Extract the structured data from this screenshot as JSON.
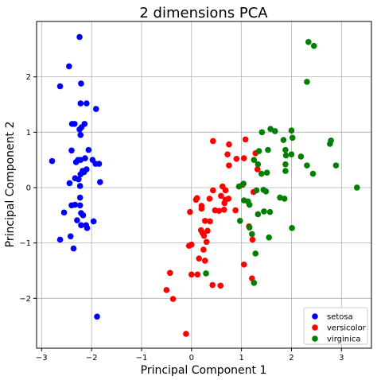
{
  "chart_data": {
    "type": "scatter",
    "title": "2 dimensions PCA",
    "xlabel": "Principal Component 1",
    "ylabel": "Principal Component 2",
    "xlim": [
      -3.1,
      3.6
    ],
    "ylim": [
      -2.9,
      3.0
    ],
    "xticks": [
      -3,
      -2,
      -1,
      0,
      1,
      2,
      3
    ],
    "yticks": [
      -2,
      -1,
      0,
      1,
      2
    ],
    "xtick_labels": [
      "−3",
      "−2",
      "−1",
      "0",
      "1",
      "2",
      "3"
    ],
    "ytick_labels": [
      "−2",
      "−1",
      "0",
      "1",
      "2"
    ],
    "grid": true,
    "legend_position": "bottom-right",
    "series": [
      {
        "name": "setosa",
        "color": "#0000ff",
        "points": [
          [
            -2.24,
            2.72
          ],
          [
            -2.45,
            2.19
          ],
          [
            -2.63,
            1.83
          ],
          [
            -2.21,
            1.88
          ],
          [
            -2.22,
            1.52
          ],
          [
            -2.1,
            1.52
          ],
          [
            -1.91,
            1.42
          ],
          [
            -2.39,
            1.15
          ],
          [
            -2.34,
            1.15
          ],
          [
            -2.14,
            1.15
          ],
          [
            -2.2,
            1.09
          ],
          [
            -2.24,
            1.05
          ],
          [
            -2.22,
            0.95
          ],
          [
            -2.4,
            0.67
          ],
          [
            -2.06,
            0.68
          ],
          [
            -2.79,
            0.48
          ],
          [
            -2.27,
            0.5
          ],
          [
            -2.13,
            0.53
          ],
          [
            -2.22,
            0.5
          ],
          [
            -1.98,
            0.5
          ],
          [
            -2.31,
            0.46
          ],
          [
            -1.92,
            0.43
          ],
          [
            -1.85,
            0.43
          ],
          [
            -2.1,
            0.33
          ],
          [
            -2.18,
            0.3
          ],
          [
            -2.15,
            0.28
          ],
          [
            -2.22,
            0.24
          ],
          [
            -2.33,
            0.17
          ],
          [
            -2.26,
            0.15
          ],
          [
            -2.44,
            0.08
          ],
          [
            -2.23,
            0.03
          ],
          [
            -1.83,
            0.1
          ],
          [
            -2.23,
            -0.18
          ],
          [
            -2.4,
            -0.32
          ],
          [
            -2.33,
            -0.31
          ],
          [
            -2.23,
            -0.32
          ],
          [
            -2.55,
            -0.45
          ],
          [
            -2.21,
            -0.46
          ],
          [
            -2.17,
            -0.5
          ],
          [
            -2.29,
            -0.59
          ],
          [
            -1.96,
            -0.61
          ],
          [
            -2.21,
            -0.68
          ],
          [
            -2.11,
            -0.68
          ],
          [
            -2.09,
            -0.73
          ],
          [
            -2.42,
            -0.88
          ],
          [
            -2.63,
            -0.94
          ],
          [
            -2.36,
            -1.1
          ],
          [
            -1.89,
            -2.33
          ]
        ]
      },
      {
        "name": "versicolor",
        "color": "#ff0000",
        "points": [
          [
            0.43,
            0.84
          ],
          [
            0.75,
            0.78
          ],
          [
            1.08,
            0.87
          ],
          [
            0.72,
            0.6
          ],
          [
            1.28,
            0.62
          ],
          [
            0.9,
            0.52
          ],
          [
            1.05,
            0.53
          ],
          [
            0.75,
            0.4
          ],
          [
            1.32,
            0.33
          ],
          [
            0.43,
            -0.05
          ],
          [
            0.62,
            0.02
          ],
          [
            0.68,
            -0.05
          ],
          [
            1.02,
            0.05
          ],
          [
            1.24,
            -0.08
          ],
          [
            0.59,
            -0.15
          ],
          [
            0.74,
            -0.2
          ],
          [
            0.68,
            -0.22
          ],
          [
            0.88,
            -0.41
          ],
          [
            -0.03,
            -0.44
          ],
          [
            0.09,
            -0.22
          ],
          [
            0.11,
            -0.19
          ],
          [
            0.36,
            -0.2
          ],
          [
            0.2,
            -0.33
          ],
          [
            0.2,
            -0.38
          ],
          [
            0.47,
            -0.41
          ],
          [
            0.55,
            -0.42
          ],
          [
            0.65,
            -0.4
          ],
          [
            0.66,
            -0.28
          ],
          [
            0.27,
            -0.6
          ],
          [
            0.19,
            -0.77
          ],
          [
            0.22,
            -0.82
          ],
          [
            0.32,
            -0.78
          ],
          [
            0.37,
            -0.61
          ],
          [
            0.25,
            -0.87
          ],
          [
            0.3,
            -0.98
          ],
          [
            -0.05,
            -1.05
          ],
          [
            0.0,
            -1.03
          ],
          [
            0.24,
            -1.12
          ],
          [
            0.15,
            -1.28
          ],
          [
            0.27,
            -1.32
          ],
          [
            1.15,
            -0.7
          ],
          [
            1.22,
            -0.94
          ],
          [
            1.05,
            -1.39
          ],
          [
            0.0,
            -1.57
          ],
          [
            0.12,
            -1.57
          ],
          [
            -0.43,
            -1.54
          ],
          [
            0.42,
            -1.76
          ],
          [
            0.58,
            -1.77
          ],
          [
            -0.5,
            -1.85
          ],
          [
            1.21,
            -1.64
          ],
          [
            -0.37,
            -2.01
          ],
          [
            -0.11,
            -2.64
          ]
        ]
      },
      {
        "name": "virginica",
        "color": "#008000",
        "points": [
          [
            2.34,
            2.63
          ],
          [
            2.45,
            2.56
          ],
          [
            2.31,
            1.91
          ],
          [
            1.58,
            1.06
          ],
          [
            1.67,
            1.02
          ],
          [
            1.41,
            1.0
          ],
          [
            2.0,
            1.03
          ],
          [
            2.02,
            0.9
          ],
          [
            1.84,
            0.86
          ],
          [
            2.77,
            0.79
          ],
          [
            2.79,
            0.85
          ],
          [
            1.88,
            0.68
          ],
          [
            1.53,
            0.68
          ],
          [
            2.0,
            0.6
          ],
          [
            1.89,
            0.58
          ],
          [
            2.19,
            0.56
          ],
          [
            1.35,
            0.66
          ],
          [
            1.25,
            0.5
          ],
          [
            1.33,
            0.42
          ],
          [
            2.31,
            0.4
          ],
          [
            2.89,
            0.4
          ],
          [
            1.88,
            0.42
          ],
          [
            1.88,
            0.3
          ],
          [
            2.43,
            0.25
          ],
          [
            1.4,
            0.25
          ],
          [
            1.51,
            0.27
          ],
          [
            0.95,
            0.02
          ],
          [
            1.04,
            0.07
          ],
          [
            1.3,
            -0.05
          ],
          [
            1.44,
            -0.04
          ],
          [
            1.05,
            -0.23
          ],
          [
            1.77,
            -0.18
          ],
          [
            1.86,
            -0.2
          ],
          [
            1.16,
            -0.31
          ],
          [
            1.57,
            -0.44
          ],
          [
            1.33,
            -0.48
          ],
          [
            1.45,
            -0.43
          ],
          [
            0.97,
            -0.6
          ],
          [
            1.16,
            -0.72
          ],
          [
            1.21,
            -0.84
          ],
          [
            2.01,
            -0.73
          ],
          [
            1.55,
            -0.9
          ],
          [
            1.28,
            -1.19
          ],
          [
            0.29,
            -1.55
          ],
          [
            1.25,
            -1.72
          ],
          [
            3.31,
            0.0
          ],
          [
            1.13,
            -0.25
          ],
          [
            1.49,
            -0.07
          ]
        ]
      }
    ]
  }
}
